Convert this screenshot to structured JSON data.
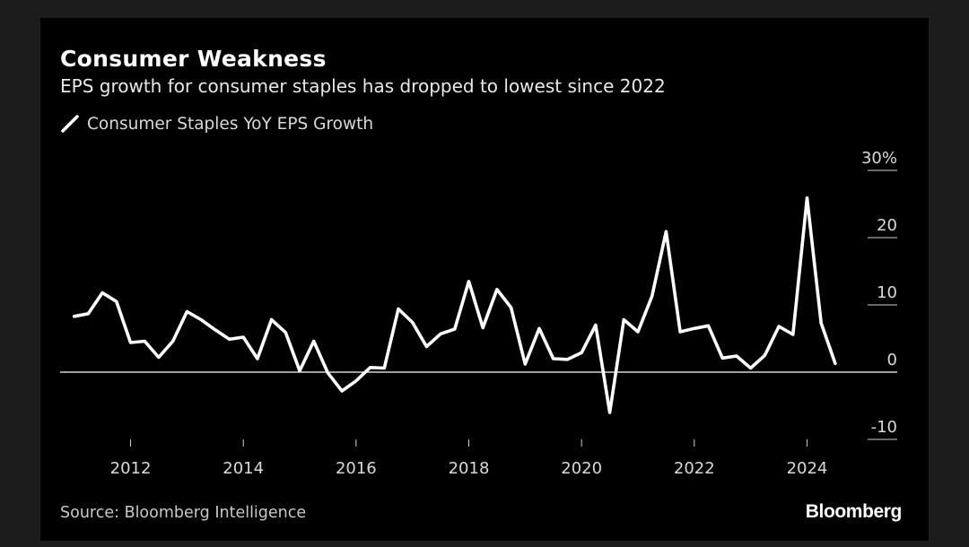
{
  "header": {
    "title": "Consumer Weakness",
    "subtitle": "EPS growth for consumer staples has dropped to lowest since 2022"
  },
  "legend": {
    "label": "Consumer Staples YoY EPS Growth"
  },
  "footer": {
    "source": "Source: Bloomberg Intelligence",
    "brand": "Bloomberg"
  },
  "colors": {
    "background": "#000000",
    "line": "#ffffff",
    "text": "#d9d9d9"
  },
  "chart_data": {
    "type": "line",
    "title": "Consumer Weakness",
    "subtitle": "EPS growth for consumer staples has dropped to lowest since 2022",
    "xlabel": "",
    "ylabel": "",
    "ylim": [
      -10,
      30
    ],
    "xlim": [
      2010.75,
      2025.6
    ],
    "y_axis_side": "right",
    "y_ticks": [
      -10,
      0,
      10,
      20,
      30
    ],
    "y_tick_labels": [
      "-10",
      "0",
      "10",
      "20",
      "30%"
    ],
    "x_ticks": [
      2012,
      2014,
      2016,
      2018,
      2020,
      2022,
      2024
    ],
    "x_tick_labels": [
      "2012",
      "2014",
      "2016",
      "2018",
      "2020",
      "2022",
      "2024"
    ],
    "grid": false,
    "zero_line": true,
    "legend_position": "top-left",
    "series": [
      {
        "name": "Consumer Staples YoY EPS Growth",
        "x": [
          2011.0,
          2011.25,
          2011.5,
          2011.75,
          2012.0,
          2012.25,
          2012.5,
          2012.75,
          2013.0,
          2013.25,
          2013.5,
          2013.75,
          2014.0,
          2014.25,
          2014.5,
          2014.75,
          2015.0,
          2015.25,
          2015.5,
          2015.75,
          2016.0,
          2016.25,
          2016.5,
          2016.75,
          2017.0,
          2017.25,
          2017.5,
          2017.75,
          2018.0,
          2018.25,
          2018.5,
          2018.75,
          2019.0,
          2019.25,
          2019.5,
          2019.75,
          2020.0,
          2020.25,
          2020.5,
          2020.75,
          2021.0,
          2021.25,
          2021.5,
          2021.75,
          2022.0,
          2022.25,
          2022.5,
          2022.75,
          2023.0,
          2023.25,
          2023.5,
          2023.75,
          2024.0,
          2024.25,
          2024.5
        ],
        "y": [
          8.3,
          8.7,
          11.8,
          10.5,
          4.4,
          4.6,
          2.2,
          4.6,
          9.0,
          7.8,
          6.3,
          4.9,
          5.2,
          2.0,
          7.8,
          5.9,
          0.2,
          4.6,
          -0.1,
          -2.8,
          -1.3,
          0.7,
          0.6,
          9.4,
          7.4,
          3.8,
          5.7,
          6.4,
          13.5,
          6.6,
          12.3,
          9.6,
          1.2,
          6.5,
          2.0,
          1.9,
          2.9,
          7.0,
          -6.0,
          7.8,
          6.0,
          11.3,
          20.9,
          6.0,
          6.5,
          6.9,
          2.1,
          2.4,
          0.6,
          2.5,
          6.8,
          5.6,
          25.9,
          7.3,
          1.3
        ]
      }
    ]
  }
}
